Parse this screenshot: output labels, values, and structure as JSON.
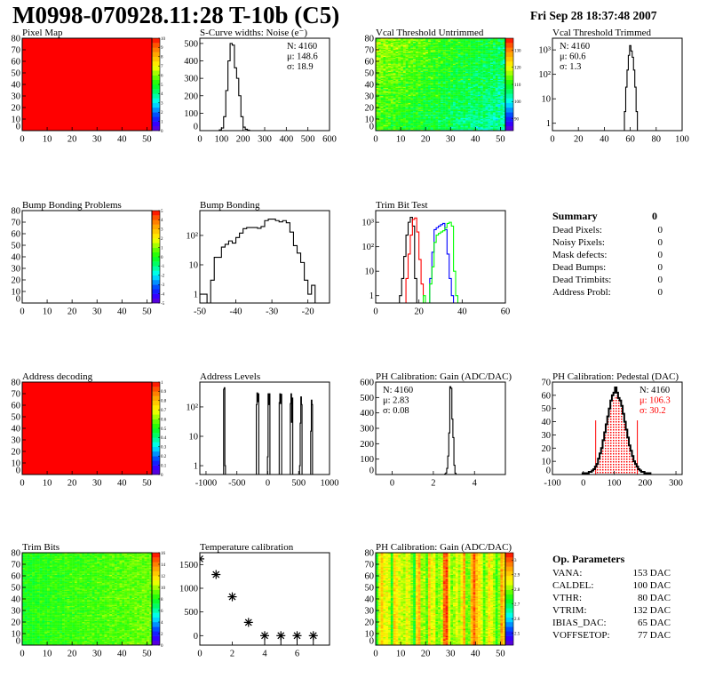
{
  "header": {
    "title": "M0998-070928.11:28 T-10b (C5)",
    "date": "Fri Sep 28 18:37:48 2007"
  },
  "summary": {
    "title": "Summary",
    "total": "0",
    "rows": [
      {
        "label": "Dead Pixels:",
        "value": "0"
      },
      {
        "label": "Noisy Pixels:",
        "value": "0"
      },
      {
        "label": "Mask defects:",
        "value": "0"
      },
      {
        "label": "Dead Bumps:",
        "value": "0"
      },
      {
        "label": "Dead Trimbits:",
        "value": "0"
      },
      {
        "label": "Address Probl:",
        "value": "0"
      }
    ]
  },
  "op_parameters": {
    "title": "Op. Parameters",
    "rows": [
      {
        "label": "VANA:",
        "value": "153 DAC"
      },
      {
        "label": "CALDEL:",
        "value": "100 DAC"
      },
      {
        "label": "VTHR:",
        "value": "80 DAC"
      },
      {
        "label": "VTRIM:",
        "value": "132 DAC"
      },
      {
        "label": "IBIAS_DAC:",
        "value": "65 DAC"
      },
      {
        "label": "VOFFSETOP:",
        "value": "77 DAC"
      }
    ]
  },
  "palette": [
    "#6600cc",
    "#3300ff",
    "#0033ff",
    "#0099ff",
    "#00ffff",
    "#00ff99",
    "#00ff33",
    "#33ff00",
    "#99ff00",
    "#ffff00",
    "#ffcc00",
    "#ff9900",
    "#ff5500",
    "#ff0000"
  ],
  "chart_data": [
    {
      "type": "heatmap",
      "title": "Pixel Map",
      "xlim": [
        0,
        52
      ],
      "ylim": [
        0,
        80
      ],
      "xticks": [
        0,
        10,
        20,
        30,
        40,
        50
      ],
      "yticks": [
        0,
        10,
        20,
        30,
        40,
        50,
        60,
        70,
        80
      ],
      "zlim": [
        0,
        10
      ],
      "zticks": [
        "0",
        "1",
        "2",
        "3",
        "4",
        "5",
        "6",
        "7",
        "8",
        "9",
        "10"
      ],
      "fill": "uniform",
      "z_value": 10
    },
    {
      "type": "bar",
      "title": "S-Curve widths: Noise (e⁻)",
      "xlim": [
        0,
        600
      ],
      "ylim": [
        0,
        530
      ],
      "log_y": false,
      "xticks": [
        0,
        100,
        200,
        300,
        400,
        500,
        600
      ],
      "yticks": [
        0,
        100,
        200,
        300,
        400,
        500
      ],
      "series": [
        {
          "color": "#000000",
          "bin_width": 10,
          "x": [
            95,
            105,
            115,
            125,
            135,
            145,
            155,
            165,
            175,
            185,
            195,
            205,
            215,
            225
          ],
          "y": [
            4,
            15,
            80,
            230,
            400,
            500,
            490,
            360,
            300,
            200,
            80,
            20,
            8,
            3
          ]
        }
      ],
      "stats": [
        {
          "text": "N: 4160",
          "color": "#000"
        },
        {
          "text": "μ: 148.6",
          "color": "#000"
        },
        {
          "text": "σ: 18.9",
          "color": "#000"
        }
      ],
      "stats_pos": "top-right"
    },
    {
      "type": "heatmap",
      "title": "Vcal Threshold Untrimmed",
      "xlim": [
        0,
        52
      ],
      "ylim": [
        0,
        80
      ],
      "xticks": [
        0,
        10,
        20,
        30,
        40,
        50
      ],
      "yticks": [
        0,
        10,
        20,
        30,
        40,
        50,
        60,
        70,
        80
      ],
      "zlim": [
        83,
        137
      ],
      "zticks": [
        "90",
        "100",
        "110",
        "120",
        "130"
      ],
      "fill": "noise",
      "z_typical": [
        98,
        115
      ]
    },
    {
      "type": "bar",
      "title": "Vcal Threshold Trimmed",
      "xlim": [
        0,
        100
      ],
      "ylim": [
        0.5,
        3000
      ],
      "log_y": true,
      "xticks": [
        0,
        20,
        40,
        60,
        80,
        100
      ],
      "yticks": [
        1,
        10,
        100,
        1000
      ],
      "ytick_labels": [
        "1",
        "10",
        "10²",
        "10³"
      ],
      "series": [
        {
          "color": "#000000",
          "bin_width": 1,
          "x": [
            56,
            57,
            58,
            59,
            60,
            61,
            62,
            63,
            64,
            65
          ],
          "y": [
            3,
            30,
            150,
            600,
            1500,
            900,
            500,
            150,
            30,
            3
          ]
        }
      ],
      "stats": [
        {
          "text": "N: 4160",
          "color": "#000"
        },
        {
          "text": "μ: 60.6",
          "color": "#000"
        },
        {
          "text": "σ:  1.3",
          "color": "#000"
        }
      ],
      "stats_pos": "top-left"
    },
    {
      "type": "heatmap",
      "title": "Bump Bonding Problems",
      "xlim": [
        0,
        52
      ],
      "ylim": [
        0,
        80
      ],
      "xticks": [
        0,
        10,
        20,
        30,
        40,
        50
      ],
      "yticks": [
        0,
        10,
        20,
        30,
        40,
        50,
        60,
        70,
        80
      ],
      "zlim": [
        -5,
        5
      ],
      "zticks": [
        "-5",
        "-4",
        "-3",
        "-2",
        "-1",
        "0",
        "1",
        "2",
        "3",
        "4",
        "5"
      ],
      "fill": "empty"
    },
    {
      "type": "bar",
      "title": "Bump Bonding",
      "xlim": [
        -50,
        -14
      ],
      "ylim": [
        0.5,
        700
      ],
      "log_y": true,
      "xticks": [
        -50,
        -40,
        -30,
        -20
      ],
      "yticks": [
        1,
        10,
        100
      ],
      "ytick_labels": [
        "1",
        "10",
        "10²"
      ],
      "series": [
        {
          "color": "#000000",
          "bin_width": 1,
          "x": [
            -49.5,
            -48.5,
            -47.5,
            -46.5,
            -45.5,
            -44.5,
            -43.5,
            -42.5,
            -41.5,
            -40.5,
            -39.5,
            -38.5,
            -37.5,
            -36.5,
            -35.5,
            -34.5,
            -33.5,
            -32.5,
            -31.5,
            -30.5,
            -29.5,
            -28.5,
            -27.5,
            -26.5,
            -25.5,
            -24.5,
            -23.5,
            -22.5,
            -21.5,
            -20.5,
            -19.5,
            -18.5
          ],
          "y": [
            1,
            1,
            0,
            3,
            18,
            18,
            40,
            50,
            65,
            55,
            85,
            120,
            170,
            185,
            185,
            185,
            175,
            200,
            320,
            360,
            360,
            320,
            290,
            320,
            270,
            130,
            45,
            25,
            12,
            3,
            1,
            2
          ]
        }
      ]
    },
    {
      "type": "bar",
      "title": "Trim Bit Test",
      "xlim": [
        0,
        60
      ],
      "ylim": [
        0.5,
        3000
      ],
      "log_y": true,
      "xticks": [
        0,
        20,
        40,
        60
      ],
      "yticks": [
        1,
        10,
        100,
        1000
      ],
      "ytick_labels": [
        "1",
        "10",
        "10²",
        "10³"
      ],
      "series": [
        {
          "color": "#000000",
          "bin_width": 1,
          "x": [
            11.5,
            12.5,
            13.5,
            14.5,
            15.5,
            16.5,
            17.5,
            18.5
          ],
          "y": [
            1,
            5,
            40,
            300,
            1000,
            1600,
            700,
            5
          ]
        },
        {
          "color": "#ff0000",
          "bin_width": 1,
          "x": [
            14.5,
            15.5,
            16.5,
            17.5,
            18.5,
            19.5,
            20.5,
            21.5
          ],
          "y": [
            5,
            50,
            300,
            1300,
            1500,
            400,
            30,
            3
          ]
        },
        {
          "color": "#0000ff",
          "bin_width": 1,
          "x": [
            25.5,
            26.5,
            27.5,
            28.5,
            29.5,
            30.5,
            31.5,
            32.5,
            33.5,
            34.5,
            35.5
          ],
          "y": [
            5,
            60,
            500,
            600,
            700,
            800,
            900,
            500,
            50,
            5,
            1
          ]
        },
        {
          "color": "#00ff00",
          "bin_width": 1,
          "x": [
            22.5,
            23.5,
            24.5,
            25.5,
            26.5,
            27.5,
            28.5,
            29.5,
            30.5,
            31.5,
            32.5,
            33.5,
            34.5,
            35.5,
            36.5,
            37.5
          ],
          "y": [
            1,
            0,
            0,
            3,
            15,
            150,
            300,
            350,
            400,
            450,
            600,
            900,
            1000,
            700,
            10,
            1
          ]
        }
      ]
    },
    {
      "type": "heatmap",
      "title": "Address decoding",
      "xlim": [
        0,
        52
      ],
      "ylim": [
        0,
        80
      ],
      "xticks": [
        0,
        10,
        20,
        30,
        40,
        50
      ],
      "yticks": [
        0,
        10,
        20,
        30,
        40,
        50,
        60,
        70,
        80
      ],
      "zlim": [
        0,
        1
      ],
      "zticks": [
        "0",
        "0.1",
        "0.2",
        "0.3",
        "0.4",
        "0.5",
        "0.6",
        "0.7",
        "0.8",
        "0.9",
        "1"
      ],
      "fill": "uniform",
      "z_value": 1
    },
    {
      "type": "bar",
      "title": "Address Levels",
      "xlim": [
        -1100,
        1000
      ],
      "ylim": [
        0.5,
        700
      ],
      "log_y": true,
      "xticks": [
        -1000,
        -500,
        0,
        500,
        1000
      ],
      "yticks": [
        1,
        10,
        100
      ],
      "ytick_labels": [
        "1",
        "10",
        "10²"
      ],
      "series": [
        {
          "color": "#000000",
          "bin_width": 10,
          "x": [
            -710,
            -700,
            -690,
            -180,
            -170,
            -160,
            -150,
            0,
            10,
            20,
            30,
            190,
            200,
            210,
            220,
            370,
            380,
            390,
            400,
            520,
            530,
            540,
            550,
            700,
            710,
            720
          ],
          "y": [
            400,
            450,
            1,
            120,
            300,
            150,
            280,
            2,
            280,
            120,
            280,
            140,
            280,
            130,
            270,
            130,
            280,
            30,
            200,
            1,
            28,
            220,
            120,
            15,
            170,
            120
          ]
        }
      ]
    },
    {
      "type": "bar",
      "title": "PH Calibration: Gain (ADC/DAC)",
      "xlim": [
        -0.8,
        5.5
      ],
      "ylim": [
        0,
        600
      ],
      "log_y": false,
      "xticks": [
        0,
        2,
        4
      ],
      "yticks": [
        0,
        100,
        200,
        300,
        400,
        500,
        600
      ],
      "series": [
        {
          "color": "#000000",
          "bin_width": 0.05,
          "x": [
            2.575,
            2.625,
            2.675,
            2.725,
            2.775,
            2.825,
            2.875,
            2.925,
            2.975,
            3.025,
            3.075
          ],
          "y": [
            3,
            10,
            40,
            120,
            270,
            570,
            560,
            360,
            240,
            60,
            8
          ]
        }
      ],
      "stats": [
        {
          "text": "N: 4160",
          "color": "#000"
        },
        {
          "text": "μ: 2.83",
          "color": "#000"
        },
        {
          "text": "σ: 0.08",
          "color": "#000"
        }
      ],
      "stats_pos": "top-left"
    },
    {
      "type": "bar",
      "title": "PH Calibration: Pedestal (DAC)",
      "xlim": [
        -100,
        320
      ],
      "ylim": [
        0,
        70
      ],
      "log_y": false,
      "xticks": [
        -100,
        0,
        100,
        200,
        300
      ],
      "yticks": [
        0,
        10,
        20,
        30,
        40,
        50,
        60,
        70
      ],
      "series": [
        {
          "color": "#000000",
          "bin_width": 5,
          "x": [
            0,
            5,
            10,
            15,
            20,
            25,
            30,
            35,
            40,
            45,
            50,
            55,
            60,
            65,
            70,
            75,
            80,
            85,
            90,
            95,
            100,
            105,
            110,
            115,
            120,
            125,
            130,
            135,
            140,
            145,
            150,
            155,
            160,
            165,
            170,
            175,
            180,
            185,
            190,
            195,
            200,
            205,
            210,
            215
          ],
          "y": [
            1,
            1,
            1,
            1,
            2,
            2,
            3,
            4,
            6,
            8,
            12,
            16,
            20,
            26,
            32,
            38,
            44,
            50,
            56,
            60,
            62,
            66,
            62,
            58,
            56,
            52,
            46,
            40,
            34,
            28,
            22,
            18,
            14,
            10,
            8,
            6,
            4,
            3,
            2,
            2,
            1,
            1,
            1,
            1
          ]
        }
      ],
      "fit": {
        "color": "#ff0000",
        "mean": 106.3,
        "sigma": 30.2,
        "peak": 60,
        "range": [
          40,
          175
        ]
      },
      "stats": [
        {
          "text": "N: 4160",
          "color": "#000"
        },
        {
          "text": "μ: 106.3",
          "color": "#ff0000"
        },
        {
          "text": "σ: 30.2",
          "color": "#ff0000"
        }
      ],
      "stats_pos": "top-right"
    },
    {
      "type": "heatmap",
      "title": "Trim Bits",
      "xlim": [
        0,
        52
      ],
      "ylim": [
        0,
        80
      ],
      "xticks": [
        0,
        10,
        20,
        30,
        40,
        50
      ],
      "yticks": [
        0,
        10,
        20,
        30,
        40,
        50,
        60,
        70,
        80
      ],
      "zlim": [
        0,
        16
      ],
      "zticks": [
        "0",
        "2",
        "4",
        "6",
        "8",
        "10",
        "12",
        "14",
        "16"
      ],
      "fill": "noise",
      "z_typical": [
        7,
        10
      ]
    },
    {
      "type": "scatter",
      "title": "Temperature calibration",
      "xlim": [
        0,
        8
      ],
      "ylim": [
        -200,
        1750
      ],
      "xticks": [
        0,
        2,
        4,
        6
      ],
      "yticks": [
        0,
        500,
        1000,
        1500
      ],
      "marker": "asterisk",
      "x": [
        0,
        1,
        2,
        3,
        4,
        5,
        6,
        7
      ],
      "y": [
        1620,
        1290,
        820,
        280,
        0,
        0,
        0,
        0
      ]
    },
    {
      "type": "heatmap",
      "title": "PH Calibration: Gain (ADC/DAC)",
      "xlim": [
        0,
        52
      ],
      "ylim": [
        0,
        80
      ],
      "xticks": [
        0,
        10,
        20,
        30,
        40,
        50
      ],
      "yticks": [
        0,
        10,
        20,
        30,
        40,
        50,
        60,
        70,
        80
      ],
      "zlim": [
        2.42,
        3.05
      ],
      "zticks": [
        "2.5",
        "2.6",
        "2.7",
        "2.8",
        "2.9",
        "3"
      ],
      "fill": "noise",
      "z_typical": [
        2.7,
        2.95
      ]
    }
  ]
}
